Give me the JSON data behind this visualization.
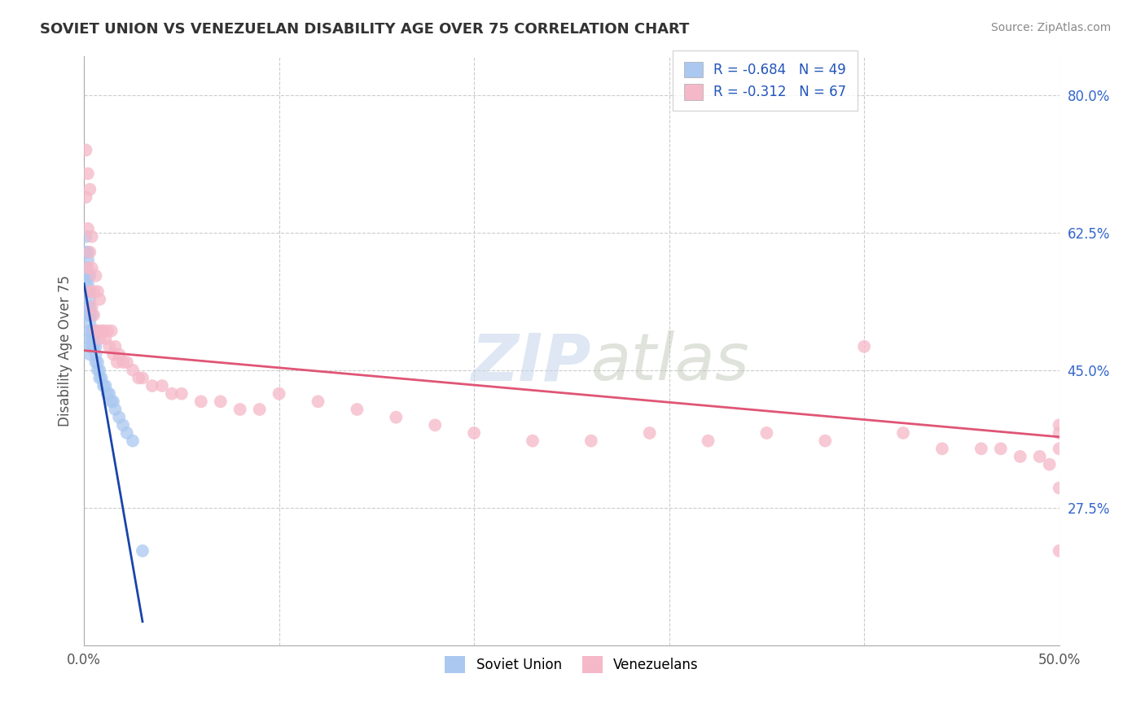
{
  "title": "SOVIET UNION VS VENEZUELAN DISABILITY AGE OVER 75 CORRELATION CHART",
  "source": "Source: ZipAtlas.com",
  "ylabel": "Disability Age Over 75",
  "xlabel": "",
  "xlim": [
    0.0,
    0.5
  ],
  "ylim": [
    0.1,
    0.85
  ],
  "ytick_right_labels": [
    "27.5%",
    "45.0%",
    "62.5%",
    "80.0%"
  ],
  "ytick_right_positions": [
    0.275,
    0.45,
    0.625,
    0.8
  ],
  "legend_r1": "R = -0.684",
  "legend_n1": "N = 49",
  "legend_r2": "R = -0.312",
  "legend_n2": "N = 67",
  "blue_color": "#aac8f0",
  "blue_line_color": "#1a44aa",
  "pink_color": "#f5b8c8",
  "pink_line_color": "#e05575",
  "background_color": "#ffffff",
  "grid_color": "#cccccc",
  "soviet_x": [
    0.001,
    0.001,
    0.001,
    0.001,
    0.001,
    0.002,
    0.002,
    0.002,
    0.002,
    0.002,
    0.002,
    0.002,
    0.003,
    0.003,
    0.003,
    0.003,
    0.003,
    0.003,
    0.003,
    0.003,
    0.003,
    0.003,
    0.004,
    0.004,
    0.004,
    0.004,
    0.005,
    0.005,
    0.005,
    0.006,
    0.006,
    0.006,
    0.007,
    0.007,
    0.008,
    0.008,
    0.009,
    0.01,
    0.011,
    0.012,
    0.013,
    0.014,
    0.015,
    0.016,
    0.018,
    0.02,
    0.022,
    0.025,
    0.03
  ],
  "soviet_y": [
    0.62,
    0.6,
    0.58,
    0.57,
    0.56,
    0.6,
    0.59,
    0.57,
    0.56,
    0.55,
    0.53,
    0.52,
    0.57,
    0.55,
    0.54,
    0.53,
    0.52,
    0.51,
    0.5,
    0.49,
    0.48,
    0.47,
    0.52,
    0.5,
    0.49,
    0.48,
    0.5,
    0.49,
    0.48,
    0.48,
    0.47,
    0.46,
    0.46,
    0.45,
    0.45,
    0.44,
    0.44,
    0.43,
    0.43,
    0.42,
    0.42,
    0.41,
    0.41,
    0.4,
    0.39,
    0.38,
    0.37,
    0.36,
    0.22
  ],
  "venezuelan_x": [
    0.001,
    0.001,
    0.002,
    0.002,
    0.002,
    0.003,
    0.003,
    0.003,
    0.004,
    0.004,
    0.004,
    0.005,
    0.005,
    0.006,
    0.006,
    0.007,
    0.007,
    0.008,
    0.008,
    0.009,
    0.01,
    0.011,
    0.012,
    0.013,
    0.014,
    0.015,
    0.016,
    0.017,
    0.018,
    0.02,
    0.022,
    0.025,
    0.028,
    0.03,
    0.035,
    0.04,
    0.045,
    0.05,
    0.06,
    0.07,
    0.08,
    0.09,
    0.1,
    0.12,
    0.14,
    0.16,
    0.18,
    0.2,
    0.23,
    0.26,
    0.29,
    0.32,
    0.35,
    0.38,
    0.4,
    0.42,
    0.44,
    0.46,
    0.47,
    0.48,
    0.49,
    0.495,
    0.5,
    0.5,
    0.5,
    0.5,
    0.5
  ],
  "venezuelan_y": [
    0.73,
    0.67,
    0.7,
    0.63,
    0.58,
    0.68,
    0.6,
    0.55,
    0.62,
    0.58,
    0.53,
    0.55,
    0.52,
    0.57,
    0.5,
    0.55,
    0.5,
    0.54,
    0.49,
    0.5,
    0.5,
    0.49,
    0.5,
    0.48,
    0.5,
    0.47,
    0.48,
    0.46,
    0.47,
    0.46,
    0.46,
    0.45,
    0.44,
    0.44,
    0.43,
    0.43,
    0.42,
    0.42,
    0.41,
    0.41,
    0.4,
    0.4,
    0.42,
    0.41,
    0.4,
    0.39,
    0.38,
    0.37,
    0.36,
    0.36,
    0.37,
    0.36,
    0.37,
    0.36,
    0.48,
    0.37,
    0.35,
    0.35,
    0.35,
    0.34,
    0.34,
    0.33,
    0.37,
    0.3,
    0.22,
    0.38,
    0.35
  ],
  "soviet_trend_x": [
    0.0,
    0.03
  ],
  "soviet_trend_y": [
    0.56,
    0.13
  ],
  "venezuelan_trend_x": [
    0.0,
    0.5
  ],
  "venezuelan_trend_y": [
    0.475,
    0.365
  ]
}
